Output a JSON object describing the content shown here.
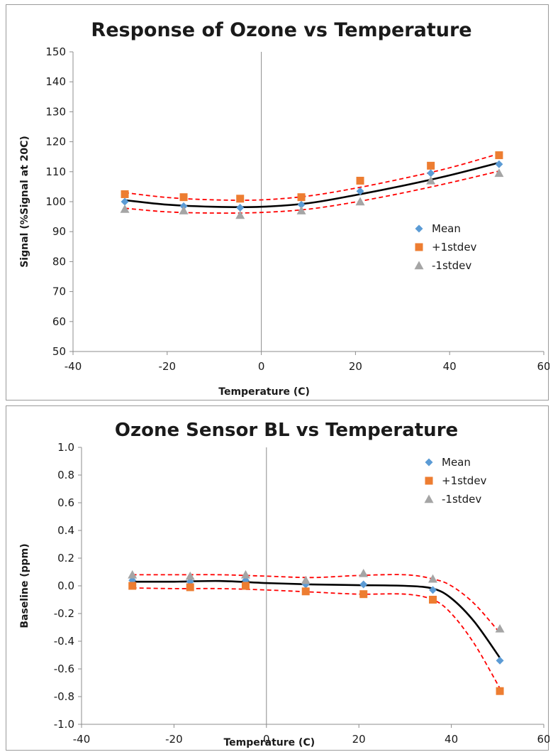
{
  "chart_data": [
    {
      "type": "scatter",
      "title": "Response of Ozone vs Temperature",
      "xlabel": "Temperature (C)",
      "ylabel": "Signal (%Signal at 20C)",
      "xlim": [
        -40,
        60
      ],
      "ylim": [
        50,
        150
      ],
      "xticks": [
        -40,
        -20,
        0,
        20,
        40,
        60
      ],
      "yticks": [
        50,
        60,
        70,
        80,
        90,
        100,
        110,
        120,
        130,
        140,
        150
      ],
      "ytick_labels": [
        "50",
        "60",
        "70",
        "80",
        "90",
        "100",
        "110",
        "120",
        "130",
        "140",
        "150"
      ],
      "grid": "vertical line at x=0",
      "legend_position": "center-right",
      "series": [
        {
          "name": "Mean",
          "marker": "diamond",
          "color": "#5b9bd5",
          "x": [
            -29,
            -16.5,
            -4.5,
            8.5,
            21,
            36,
            50.5
          ],
          "y": [
            100,
            98.5,
            98,
            99,
            103.5,
            109.5,
            112.5
          ]
        },
        {
          "name": "+1stdev",
          "marker": "square",
          "color": "#ed7d31",
          "x": [
            -29,
            -16.5,
            -4.5,
            8.5,
            21,
            36,
            50.5
          ],
          "y": [
            102.5,
            101.5,
            101,
            101.5,
            107,
            112,
            115.5
          ]
        },
        {
          "name": "-1stdev",
          "marker": "triangle",
          "color": "#a5a5a5",
          "x": [
            -29,
            -16.5,
            -4.5,
            8.5,
            21,
            36,
            50.5
          ],
          "y": [
            97.5,
            97,
            95.5,
            97,
            100,
            107,
            109.5
          ]
        }
      ],
      "trendlines": [
        {
          "style": "solid",
          "color": "#000000",
          "x": [
            -29,
            -20,
            -10,
            0,
            10,
            20,
            30,
            40,
            50.5
          ],
          "y": [
            100.5,
            99,
            98.3,
            98.3,
            99.5,
            102.2,
            105.3,
            108.8,
            113
          ]
        },
        {
          "style": "dashed",
          "color": "#ff0000",
          "x": [
            -29,
            -20,
            -10,
            0,
            10,
            20,
            30,
            40,
            50.5
          ],
          "y": [
            103,
            101.4,
            100.6,
            100.6,
            101.9,
            104.5,
            107.7,
            111.3,
            116
          ]
        },
        {
          "style": "dashed",
          "color": "#ff0000",
          "x": [
            -29,
            -20,
            -10,
            0,
            10,
            20,
            30,
            40,
            50.5
          ],
          "y": [
            97.8,
            96.6,
            96.2,
            96.4,
            97.5,
            99.9,
            102.9,
            106.3,
            110.2
          ]
        }
      ]
    },
    {
      "type": "scatter",
      "title": "Ozone Sensor BL vs Temperature",
      "xlabel": "Temperature (C)",
      "ylabel": "Baseline (ppm)",
      "xlim": [
        -40,
        60
      ],
      "ylim": [
        -1.0,
        1.0
      ],
      "xticks": [
        -40,
        -20,
        0,
        20,
        40,
        60
      ],
      "yticks": [
        -1.0,
        -0.8,
        -0.6,
        -0.4,
        -0.2,
        0.0,
        0.2,
        0.4,
        0.6,
        0.8,
        1.0
      ],
      "ytick_labels": [
        "-1.0",
        "-0.8",
        "-0.6",
        "-0.4",
        "-0.2",
        "0.0",
        "0.2",
        "0.4",
        "0.6",
        "0.8",
        "1.0"
      ],
      "grid": "vertical line at x=0",
      "legend_position": "top-right",
      "series": [
        {
          "name": "Mean",
          "marker": "diamond",
          "color": "#5b9bd5",
          "x": [
            -29,
            -16.5,
            -4.5,
            8.5,
            21,
            36,
            50.5
          ],
          "y": [
            0.04,
            0.03,
            0.04,
            0.01,
            0.01,
            -0.03,
            -0.54
          ]
        },
        {
          "name": "+1stdev",
          "marker": "square",
          "color": "#ed7d31",
          "x": [
            -29,
            -16.5,
            -4.5,
            8.5,
            21,
            36,
            50.5
          ],
          "y": [
            0.0,
            -0.01,
            0.0,
            -0.04,
            -0.06,
            -0.1,
            -0.76
          ]
        },
        {
          "name": "-1stdev",
          "marker": "triangle",
          "color": "#a5a5a5",
          "x": [
            -29,
            -16.5,
            -4.5,
            8.5,
            21,
            36,
            50.5
          ],
          "y": [
            0.08,
            0.07,
            0.08,
            0.04,
            0.09,
            0.05,
            -0.31
          ]
        }
      ],
      "trendlines": [
        {
          "style": "solid",
          "color": "#000000",
          "x": [
            -29,
            -20,
            -10,
            0,
            10,
            20,
            30,
            36,
            40,
            45,
            50.5
          ],
          "y": [
            0.03,
            0.03,
            0.035,
            0.02,
            0.01,
            0.005,
            0.0,
            -0.02,
            -0.09,
            -0.26,
            -0.52
          ]
        },
        {
          "style": "dashed",
          "color": "#ff0000",
          "x": [
            -29,
            -20,
            -10,
            0,
            10,
            20,
            30,
            36,
            40,
            45,
            50.5
          ],
          "y": [
            0.08,
            0.08,
            0.08,
            0.07,
            0.06,
            0.075,
            0.08,
            0.05,
            0.0,
            -0.13,
            -0.34
          ]
        },
        {
          "style": "dashed",
          "color": "#ff0000",
          "x": [
            -29,
            -20,
            -10,
            0,
            10,
            20,
            30,
            36,
            40,
            45,
            50.5
          ],
          "y": [
            -0.015,
            -0.02,
            -0.02,
            -0.03,
            -0.045,
            -0.06,
            -0.06,
            -0.1,
            -0.2,
            -0.42,
            -0.74
          ]
        }
      ]
    }
  ]
}
